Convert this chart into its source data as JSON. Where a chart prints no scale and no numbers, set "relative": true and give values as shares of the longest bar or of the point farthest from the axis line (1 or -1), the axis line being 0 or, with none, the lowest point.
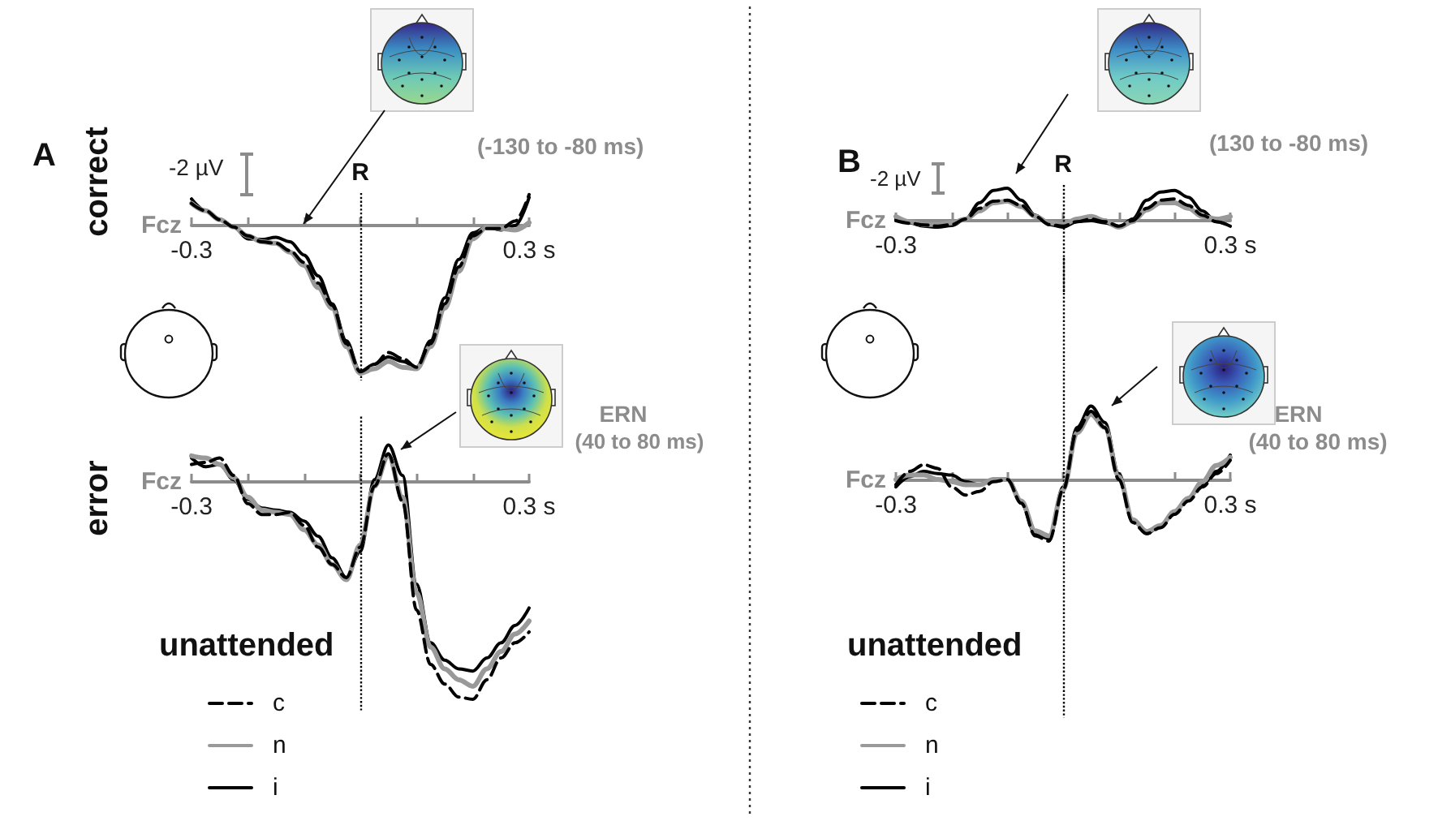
{
  "chart_data": [
    {
      "type": "line",
      "title": "A",
      "ylabel": "correct",
      "relative": true,
      "marker": "none",
      "x": [
        -0.3,
        -0.275,
        -0.25,
        -0.225,
        -0.2,
        -0.175,
        -0.15,
        -0.125,
        -0.1,
        -0.075,
        -0.05,
        -0.025,
        0,
        0.025,
        0.05,
        0.075,
        0.1,
        0.125,
        0.15,
        0.175,
        0.2,
        0.225,
        0.25,
        0.275,
        0.3
      ],
      "xlim": [
        -0.3,
        0.3
      ],
      "xticks": [
        {
          "value": -0.3,
          "label": "-0.3"
        },
        {
          "value": -0.2,
          "label": null
        },
        {
          "value": -0.1,
          "label": null
        },
        {
          "value": 0,
          "label": null
        },
        {
          "value": 0.1,
          "label": null
        },
        {
          "value": 0.2,
          "label": null
        },
        {
          "value": 0.3,
          "label": "0.3 s"
        }
      ],
      "series": [
        {
          "color": "#000000",
          "line_style": "dashed",
          "values": [
            0.15,
            0.1,
            0.04,
            -0.01,
            -0.07,
            -0.11,
            -0.12,
            -0.17,
            -0.25,
            -0.39,
            -0.54,
            -0.8,
            -0.99,
            -0.94,
            -0.86,
            -0.9,
            -0.96,
            -0.8,
            -0.53,
            -0.28,
            -0.07,
            -0.02,
            -0.02,
            0.03,
            0.21
          ]
        },
        {
          "color": "#999999",
          "line_style": "solid",
          "values": [
            0.15,
            0.1,
            0.04,
            -0.01,
            -0.07,
            -0.11,
            -0.12,
            -0.18,
            -0.27,
            -0.42,
            -0.56,
            -0.82,
            -1,
            -0.97,
            -0.92,
            -0.96,
            -0.97,
            -0.82,
            -0.56,
            -0.31,
            -0.09,
            -0.01,
            -0.02,
            -0.03,
            0.02
          ]
        },
        {
          "color": "#000000",
          "line_style": "solid",
          "values": [
            0.18,
            0.1,
            0.04,
            -0.01,
            -0.09,
            -0.095,
            -0.08,
            -0.11,
            -0.2,
            -0.34,
            -0.53,
            -0.78,
            -0.99,
            -0.94,
            -0.89,
            -0.92,
            -0.96,
            -0.78,
            -0.49,
            -0.23,
            -0.05,
            -0.01,
            -0.03,
            0,
            0.19
          ]
        }
      ],
      "ref_lines": [
        {
          "axis": "x",
          "value": 0,
          "label": "R",
          "line_style": "dotted",
          "color": "#000000"
        }
      ],
      "annotations": [
        "Fcz",
        "-2 µV",
        "(-130 to -80 ms)"
      ]
    },
    {
      "type": "line",
      "ylabel": "error",
      "relative": true,
      "marker": "none",
      "legend": "bottom left",
      "legend_title": "unattended",
      "x": [
        -0.3,
        -0.275,
        -0.25,
        -0.225,
        -0.2,
        -0.175,
        -0.15,
        -0.125,
        -0.1,
        -0.075,
        -0.05,
        -0.025,
        0,
        0.025,
        0.05,
        0.075,
        0.1,
        0.125,
        0.15,
        0.175,
        0.2,
        0.225,
        0.25,
        0.275,
        0.3
      ],
      "xlim": [
        -0.3,
        0.3
      ],
      "xticks": [
        {
          "value": -0.3,
          "label": "-0.3"
        },
        {
          "value": -0.2,
          "label": null
        },
        {
          "value": -0.1,
          "label": null
        },
        {
          "value": 0,
          "label": null
        },
        {
          "value": 0.1,
          "label": null
        },
        {
          "value": 0.2,
          "label": null
        },
        {
          "value": 0.3,
          "label": "0.3 s"
        }
      ],
      "series": [
        {
          "name": "c",
          "color": "#000000",
          "line_style": "dashed",
          "values": [
            0.08,
            0.09,
            0.11,
            0.03,
            -0.1,
            -0.15,
            -0.15,
            -0.14,
            -0.2,
            -0.3,
            -0.38,
            -0.44,
            -0.3,
            -0.02,
            0.13,
            -0.09,
            -0.59,
            -0.84,
            -0.93,
            -0.99,
            -1,
            -0.91,
            -0.81,
            -0.74,
            -0.69
          ]
        },
        {
          "name": "n",
          "color": "#999999",
          "line_style": "solid",
          "values": [
            0.12,
            0.11,
            0.08,
            0.02,
            -0.07,
            -0.13,
            -0.14,
            -0.15,
            -0.22,
            -0.29,
            -0.38,
            -0.45,
            -0.29,
            -0.02,
            0.12,
            -0.07,
            -0.51,
            -0.76,
            -0.86,
            -0.91,
            -0.94,
            -0.86,
            -0.78,
            -0.7,
            -0.64
          ]
        },
        {
          "name": "i",
          "color": "#000000",
          "line_style": "solid",
          "values": [
            0.11,
            0.07,
            0.08,
            0.01,
            -0.08,
            -0.12,
            -0.13,
            -0.14,
            -0.18,
            -0.25,
            -0.35,
            -0.44,
            -0.32,
            0.01,
            0.17,
            0.03,
            -0.47,
            -0.74,
            -0.82,
            -0.86,
            -0.87,
            -0.81,
            -0.74,
            -0.66,
            -0.58
          ]
        }
      ],
      "ref_lines": [
        {
          "axis": "x",
          "value": 0,
          "line_style": "dotted",
          "color": "#000000"
        }
      ],
      "annotations": [
        "Fcz",
        "ERN",
        "(40 to 80 ms)"
      ]
    },
    {
      "type": "line",
      "title": "B",
      "relative": true,
      "marker": "none",
      "x": [
        -0.3,
        -0.275,
        -0.25,
        -0.225,
        -0.2,
        -0.175,
        -0.15,
        -0.125,
        -0.1,
        -0.075,
        -0.05,
        -0.025,
        0,
        0.025,
        0.05,
        0.075,
        0.1,
        0.125,
        0.15,
        0.175,
        0.2,
        0.225,
        0.25,
        0.275,
        0.3
      ],
      "xlim": [
        -0.3,
        0.3
      ],
      "xticks": [
        {
          "value": -0.3,
          "label": "-0.3"
        },
        {
          "value": -0.2,
          "label": null
        },
        {
          "value": -0.1,
          "label": null
        },
        {
          "value": 0,
          "label": null
        },
        {
          "value": 0.1,
          "label": null
        },
        {
          "value": 0.2,
          "label": null
        },
        {
          "value": 0.3,
          "label": "0.3 s"
        }
      ],
      "series": [
        {
          "color": "#000000",
          "line_style": "dashed",
          "values": [
            0,
            -0.08,
            -0.13,
            -0.17,
            -0.12,
            0.05,
            0.38,
            0.6,
            0.63,
            0.47,
            0.13,
            -0.12,
            -0.17,
            -0.03,
            0.05,
            -0.03,
            -0.17,
            0,
            0.38,
            0.63,
            0.67,
            0.47,
            0.17,
            -0.03,
            -0.17
          ]
        },
        {
          "color": "#999999",
          "line_style": "solid",
          "values": [
            0.13,
            -0.03,
            -0.12,
            -0.12,
            -0.07,
            0.05,
            0.3,
            0.55,
            0.6,
            0.43,
            0.13,
            -0.07,
            -0.12,
            0.05,
            0.13,
            0,
            -0.2,
            -0.03,
            0.33,
            0.55,
            0.55,
            0.38,
            0.13,
            0.05,
            0.13
          ]
        },
        {
          "color": "#000000",
          "line_style": "solid",
          "values": [
            0.05,
            -0.07,
            -0.17,
            -0.2,
            -0.15,
            0.05,
            0.55,
            0.93,
            1,
            0.63,
            0.17,
            -0.12,
            -0.2,
            -0.03,
            0,
            -0.07,
            -0.2,
            0.05,
            0.63,
            0.88,
            0.93,
            0.72,
            0.3,
            -0.03,
            -0.17
          ]
        }
      ],
      "ref_lines": [
        {
          "axis": "x",
          "value": 0,
          "label": "R",
          "line_style": "dotted",
          "color": "#000000"
        }
      ],
      "annotations": [
        "Fcz",
        "-2 µV",
        "(130 to -80 ms)"
      ]
    },
    {
      "type": "line",
      "relative": true,
      "marker": "none",
      "legend": "bottom left",
      "legend_title": "unattended",
      "x": [
        -0.3,
        -0.275,
        -0.25,
        -0.225,
        -0.2,
        -0.175,
        -0.15,
        -0.125,
        -0.1,
        -0.075,
        -0.05,
        -0.025,
        0,
        0.025,
        0.05,
        0.075,
        0.1,
        0.125,
        0.15,
        0.175,
        0.2,
        0.225,
        0.25,
        0.275,
        0.3
      ],
      "xlim": [
        -0.3,
        0.3
      ],
      "xticks": [
        {
          "value": -0.3,
          "label": "-0.3"
        },
        {
          "value": -0.2,
          "label": null
        },
        {
          "value": -0.1,
          "label": null
        },
        {
          "value": 0,
          "label": null
        },
        {
          "value": 0.1,
          "label": null
        },
        {
          "value": 0.2,
          "label": null
        },
        {
          "value": 0.3,
          "label": "0.3 s"
        }
      ],
      "series": [
        {
          "name": "c",
          "color": "#000000",
          "line_style": "dashed",
          "values": [
            -0.06,
            0.12,
            0.21,
            0.16,
            -0.09,
            -0.2,
            -0.15,
            -0.02,
            0.01,
            -0.31,
            -0.75,
            -0.82,
            -0.13,
            0.67,
            0.93,
            0.71,
            0.01,
            -0.57,
            -0.72,
            -0.64,
            -0.46,
            -0.28,
            -0.09,
            0.09,
            0.27
          ]
        },
        {
          "name": "n",
          "color": "#999999",
          "line_style": "solid",
          "values": [
            0.01,
            0.07,
            0.07,
            0.01,
            -0.02,
            -0.06,
            -0.06,
            0.01,
            0.01,
            -0.28,
            -0.68,
            -0.75,
            -0.13,
            0.64,
            0.89,
            0.71,
            0.05,
            -0.53,
            -0.69,
            -0.61,
            -0.42,
            -0.24,
            -0.02,
            0.2,
            0.31
          ]
        },
        {
          "name": "i",
          "color": "#000000",
          "line_style": "solid",
          "values": [
            -0.09,
            0.05,
            0.12,
            0.09,
            0.07,
            -0.02,
            -0.06,
            0,
            0.01,
            -0.31,
            -0.72,
            -0.79,
            -0.09,
            0.71,
            1,
            0.78,
            0.09,
            -0.53,
            -0.72,
            -0.61,
            -0.42,
            -0.24,
            -0.06,
            0.12,
            0.34
          ]
        }
      ],
      "ref_lines": [
        {
          "axis": "x",
          "value": 0,
          "line_style": "dotted",
          "color": "#000000"
        }
      ],
      "annotations": [
        "Fcz",
        "ERN",
        "(40 to 80 ms)"
      ]
    }
  ]
}
